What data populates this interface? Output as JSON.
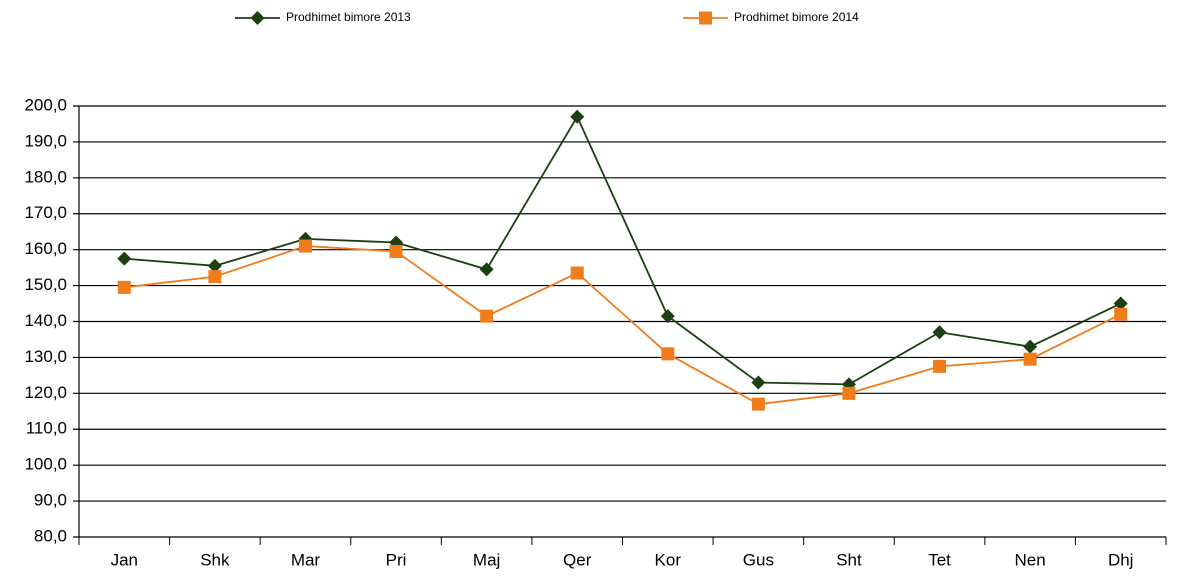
{
  "chart_data": {
    "type": "line",
    "categories": [
      "Jan",
      "Shk",
      "Mar",
      "Pri",
      "Maj",
      "Qer",
      "Kor",
      "Gus",
      "Sht",
      "Tet",
      "Nen",
      "Dhj"
    ],
    "series": [
      {
        "name": "Prodhimet bimore 2013",
        "color": "#1b3f10",
        "marker": "diamond",
        "values": [
          157.5,
          155.5,
          163,
          162,
          154.5,
          197,
          141.5,
          123,
          122.5,
          137,
          133,
          145
        ]
      },
      {
        "name": "Prodhimet bimore 2014",
        "color": "#f07c1c",
        "marker": "square",
        "values": [
          149.5,
          152.5,
          161,
          159.5,
          141.5,
          153.5,
          131,
          117,
          120,
          127.5,
          129.5,
          142
        ]
      }
    ],
    "ylim": [
      80,
      200
    ],
    "yticks": [
      {
        "value": 80,
        "label": "80,0"
      },
      {
        "value": 90,
        "label": "90,0"
      },
      {
        "value": 100,
        "label": "100,0"
      },
      {
        "value": 110,
        "label": "110,0"
      },
      {
        "value": 120,
        "label": "120,0"
      },
      {
        "value": 130,
        "label": "130,0"
      },
      {
        "value": 140,
        "label": "140,0"
      },
      {
        "value": 150,
        "label": "150,0"
      },
      {
        "value": 160,
        "label": "160,0"
      },
      {
        "value": 170,
        "label": "170,0"
      },
      {
        "value": 180,
        "label": "180,0"
      },
      {
        "value": 190,
        "label": "190,0"
      },
      {
        "value": 200,
        "label": "200,0"
      }
    ],
    "grid": true,
    "legend": "top"
  }
}
